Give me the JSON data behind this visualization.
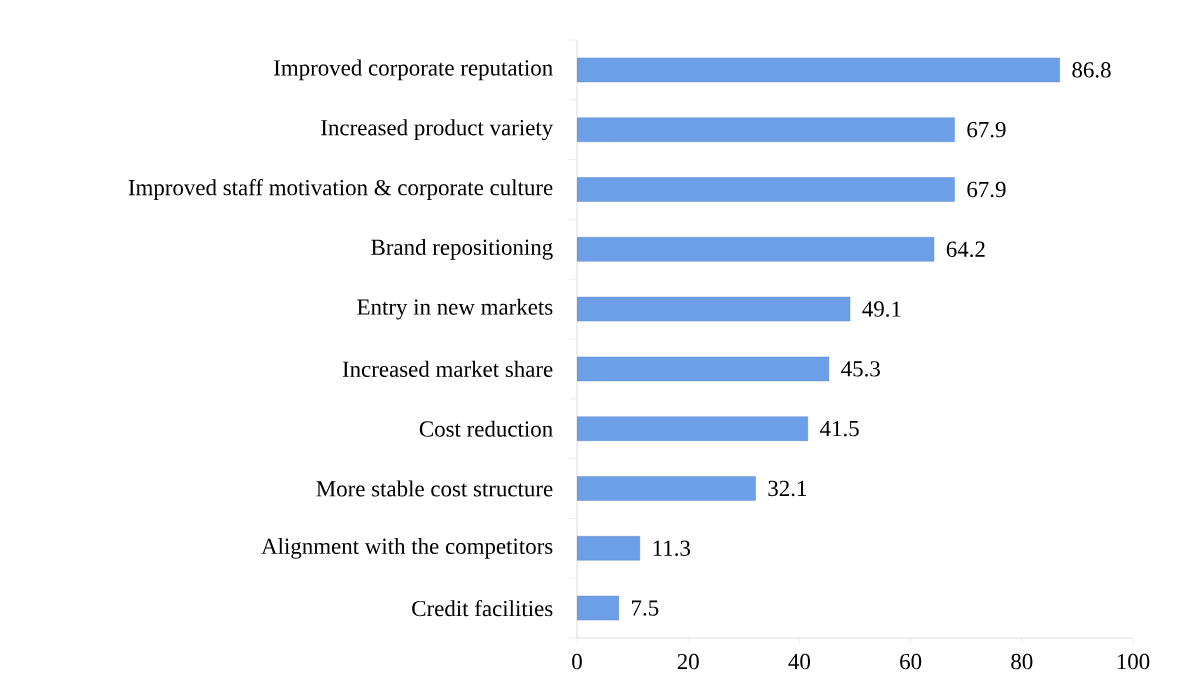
{
  "chart_data": {
    "type": "bar",
    "orientation": "horizontal",
    "categories": [
      "Improved corporate reputation",
      "Increased product variety",
      "Improved staff motivation & corporate culture",
      "Brand repositioning",
      "Entry in new markets",
      "Increased market share",
      "Cost reduction",
      "More stable cost structure",
      "Alignment with the competitors",
      "Credit facilities"
    ],
    "values": [
      86.8,
      67.9,
      67.9,
      64.2,
      49.1,
      45.3,
      41.5,
      32.1,
      11.3,
      7.5
    ],
    "color": "#6d9fe8",
    "xlim": [
      0,
      100
    ],
    "xticks": [
      0,
      20,
      40,
      60,
      80,
      100
    ],
    "grid": false,
    "data_labels": true
  }
}
